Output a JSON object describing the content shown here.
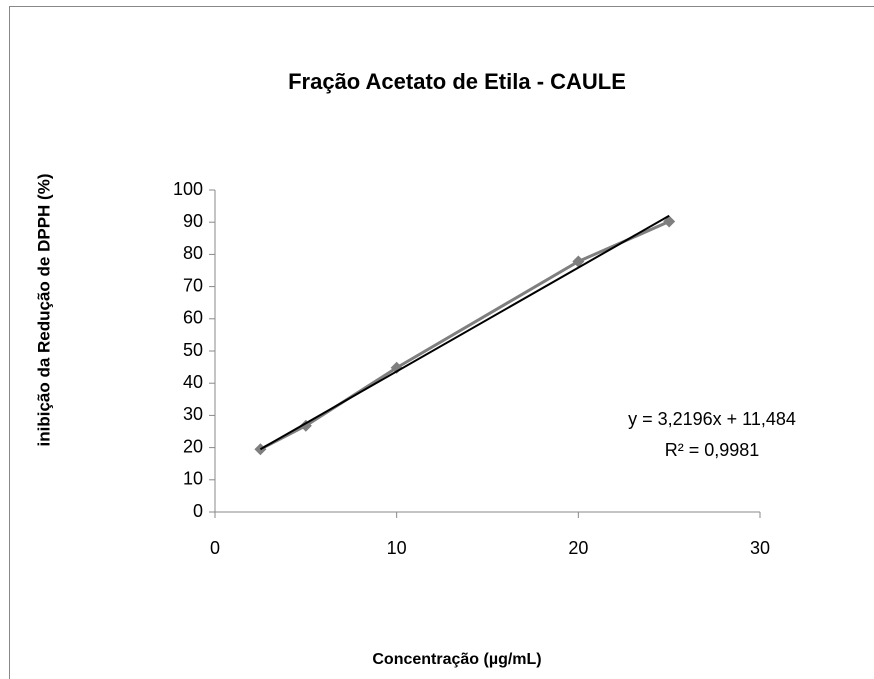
{
  "chart_data": {
    "type": "scatter",
    "title": "Fração Acetato de Etila - CAULE",
    "xlabel": "Concentração (µg/mL)",
    "ylabel": "inibição da Redução de DPPH (%)",
    "xlim": [
      0,
      30
    ],
    "xticks": [
      0,
      10,
      20,
      30
    ],
    "ylim": [
      0,
      100
    ],
    "yticks": [
      0,
      10,
      20,
      30,
      40,
      50,
      60,
      70,
      80,
      90,
      100
    ],
    "series": [
      {
        "color": "#7f7f7f",
        "x": [
          2.5,
          5,
          10,
          20,
          25
        ],
        "values": [
          19.5,
          26.8,
          44.8,
          77.8,
          90.2
        ]
      }
    ],
    "trendline": {
      "color": "#000000",
      "x": [
        2.5,
        25
      ],
      "values": [
        19.5,
        92
      ]
    },
    "annotations": [
      "y = 3,2196x + 11,484",
      "R² = 0,9981"
    ]
  }
}
